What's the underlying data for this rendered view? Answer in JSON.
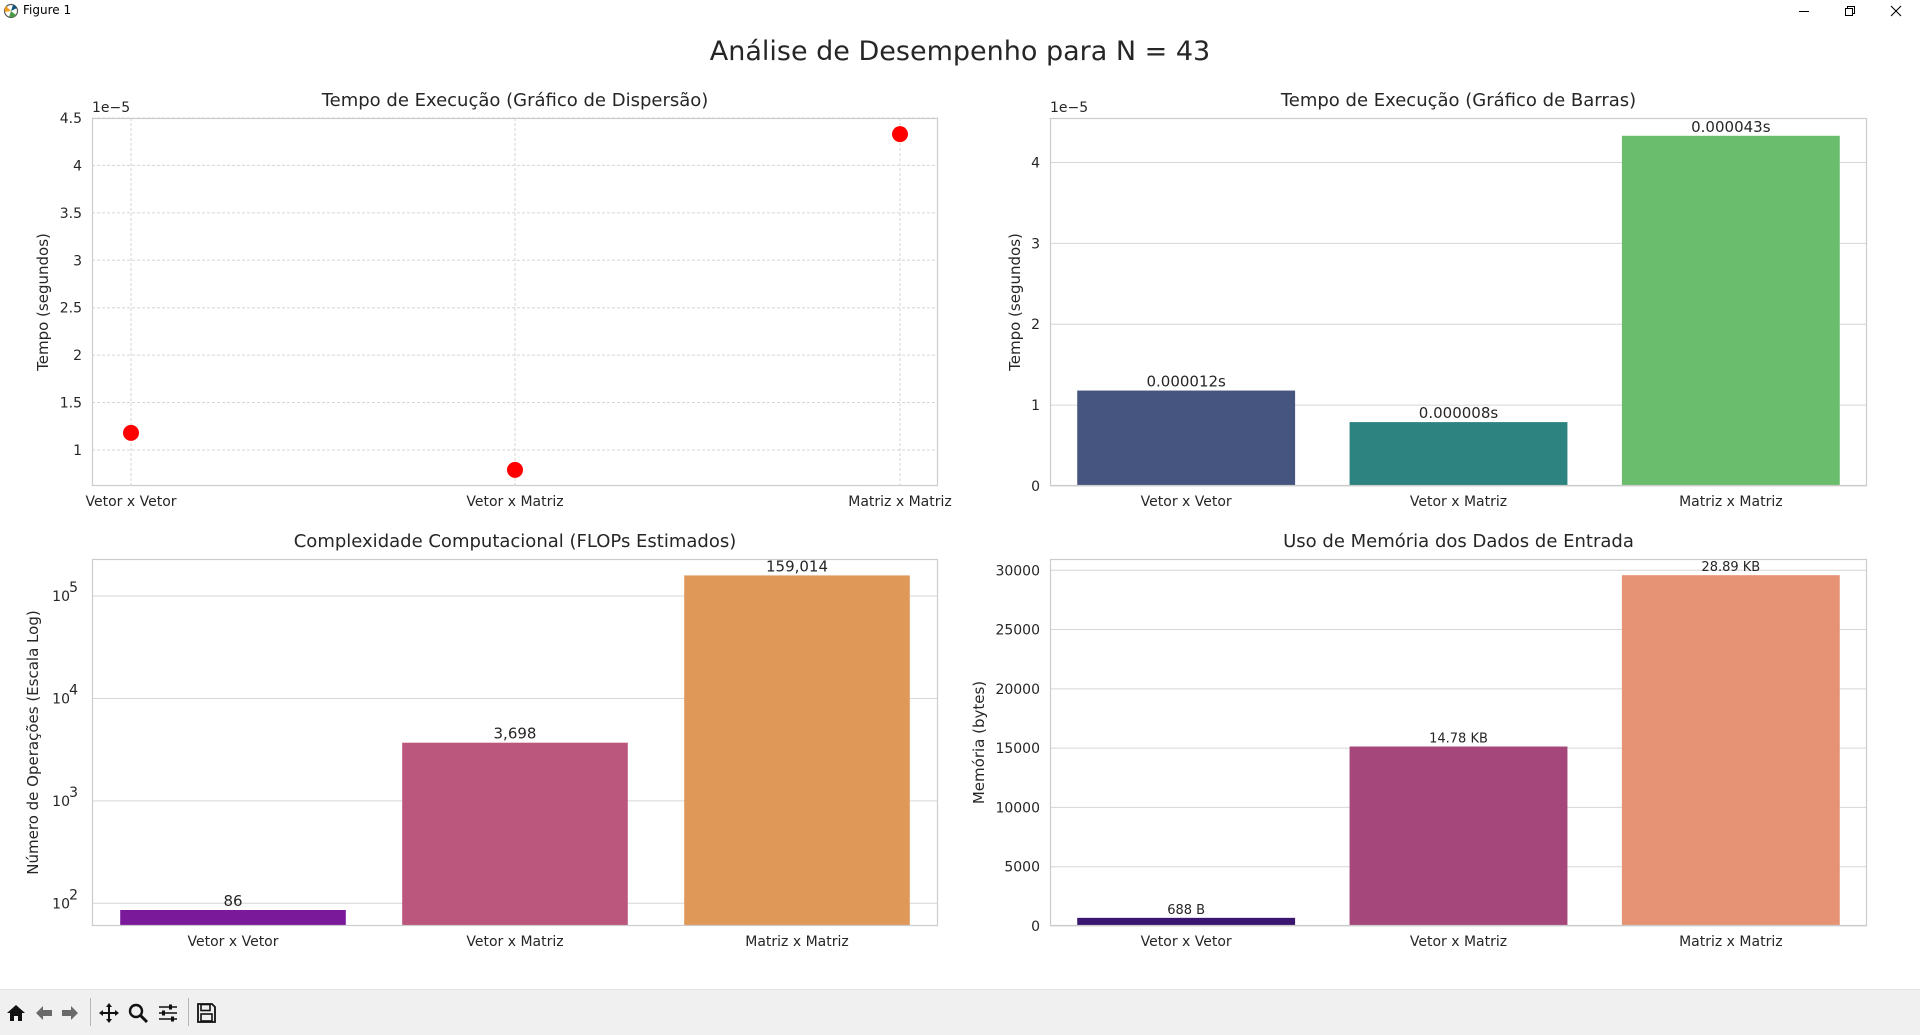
{
  "window": {
    "title": "Figure 1"
  },
  "figure": {
    "suptitle": "Análise de Desempenho para N = 43"
  },
  "icons": [
    "matplotlib-logo-icon",
    "minimize-icon",
    "maximize-icon",
    "close-icon",
    "home-icon",
    "back-arrow-icon",
    "forward-arrow-icon",
    "pan-icon",
    "zoom-icon",
    "configure-subplots-icon",
    "save-icon"
  ],
  "chart_data": [
    {
      "type": "scatter",
      "title": "Tempo de Execução (Gráfico de Dispersão)",
      "xlabel": "",
      "ylabel": "Tempo (segundos)",
      "offset_text": "1e−5",
      "categories": [
        "Vetor x Vetor",
        "Vetor x Matriz",
        "Matriz x Matriz"
      ],
      "values": [
        1.18e-05,
        7.9e-06,
        4.33e-05
      ],
      "y_ticks": [
        1.0,
        1.5,
        2.0,
        2.5,
        3.0,
        3.5,
        4.0,
        4.5
      ],
      "ylim": [
        6.2e-06,
        4.5e-05
      ],
      "color": "#ff0000",
      "grid": true
    },
    {
      "type": "bar",
      "title": "Tempo de Execução (Gráfico de Barras)",
      "xlabel": "",
      "ylabel": "Tempo (segundos)",
      "offset_text": "1e−5",
      "categories": [
        "Vetor x Vetor",
        "Vetor x Matriz",
        "Matriz x Matriz"
      ],
      "values": [
        1.18e-05,
        7.9e-06,
        4.33e-05
      ],
      "data_labels": [
        "0.000012s",
        "0.000008s",
        "0.000043s"
      ],
      "y_ticks": [
        0,
        1,
        2,
        3,
        4
      ],
      "ylim": [
        0,
        4.55e-05
      ],
      "colors": [
        "#46557f",
        "#2c8380",
        "#6abd6d"
      ],
      "grid": true
    },
    {
      "type": "bar",
      "title": "Complexidade Computacional (FLOPs Estimados)",
      "xlabel": "",
      "ylabel": "Número de Operações (Escala Log)",
      "log_scale": true,
      "categories": [
        "Vetor x Vetor",
        "Vetor x Matriz",
        "Matriz x Matriz"
      ],
      "values": [
        86,
        3698,
        159014
      ],
      "data_labels": [
        "86",
        "3,698",
        "159,014"
      ],
      "y_ticks": [
        100,
        1000,
        10000,
        100000
      ],
      "y_tick_base": "10",
      "y_tick_exponents": [
        "2",
        "3",
        "4",
        "5"
      ],
      "ylim": [
        60,
        230000
      ],
      "colors": [
        "#7a1a9a",
        "#bb577d",
        "#df9858"
      ],
      "grid": true
    },
    {
      "type": "bar",
      "title": "Uso de Memória dos Dados de Entrada",
      "xlabel": "",
      "ylabel": "Memória (bytes)",
      "categories": [
        "Vetor x Vetor",
        "Vetor x Matriz",
        "Matriz x Matriz"
      ],
      "values": [
        688,
        15136,
        29584
      ],
      "data_labels": [
        "688 B",
        "14.78 KB",
        "28.89 KB"
      ],
      "y_ticks": [
        0,
        5000,
        10000,
        15000,
        20000,
        25000,
        30000
      ],
      "ylim": [
        0,
        30950
      ],
      "colors": [
        "#3b1670",
        "#a5477a",
        "#e69275"
      ],
      "grid": true
    }
  ]
}
